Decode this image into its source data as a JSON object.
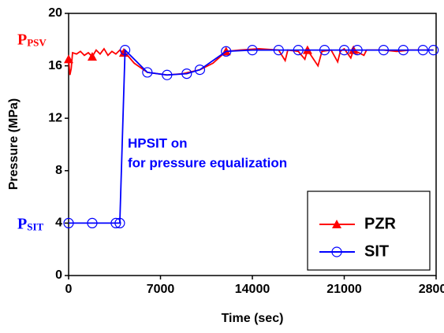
{
  "chart_data": {
    "type": "line",
    "x_label": "Time (sec)",
    "y_label": "Pressure (MPa)",
    "xlim": [
      0,
      28000
    ],
    "xticks": [
      0,
      7000,
      14000,
      21000,
      28000
    ],
    "ylim": [
      0,
      20
    ],
    "yticks": [
      0,
      4,
      8,
      12,
      16,
      20
    ],
    "legend_position": "lower right",
    "series": [
      {
        "name": "PZR",
        "color": "#ff0000",
        "marker": "triangle",
        "marker_every": 8,
        "x": [
          0,
          100,
          200,
          300,
          600,
          900,
          1200,
          1500,
          1800,
          2100,
          2400,
          2700,
          3000,
          3300,
          3600,
          3900,
          4200,
          4400,
          5000,
          6000,
          7500,
          8700,
          10000,
          11000,
          12000,
          13000,
          14500,
          16000,
          16500,
          16700,
          17500,
          18000,
          18200,
          19000,
          19300,
          20000,
          20500,
          20700,
          21000,
          21500,
          21700,
          22500,
          22700,
          24000,
          25000,
          26000,
          27000,
          27800
        ],
        "values": [
          16.5,
          15.3,
          15.8,
          17.0,
          16.9,
          17.1,
          16.8,
          17.0,
          16.7,
          17.2,
          16.9,
          17.3,
          16.8,
          17.1,
          16.9,
          17.2,
          17.0,
          16.9,
          16.2,
          15.5,
          15.3,
          15.4,
          15.7,
          16.2,
          17.1,
          17.2,
          17.3,
          17.2,
          16.4,
          17.2,
          17.1,
          16.5,
          17.2,
          16.0,
          17.1,
          17.2,
          16.3,
          17.1,
          17.3,
          16.6,
          17.2,
          16.8,
          17.2,
          17.2,
          17.1,
          17.2,
          17.2,
          17.2
        ]
      },
      {
        "name": "SIT",
        "color": "#0000ff",
        "marker": "circle",
        "marker_every": 1,
        "x": [
          0,
          1800,
          3600,
          3900,
          4300,
          6000,
          7500,
          9000,
          10000,
          12000,
          14000,
          16000,
          17500,
          19500,
          21000,
          22000,
          24000,
          25500,
          27000,
          27800
        ],
        "values": [
          4,
          4,
          4,
          4,
          17.2,
          15.5,
          15.3,
          15.4,
          15.7,
          17.1,
          17.2,
          17.2,
          17.2,
          17.2,
          17.2,
          17.2,
          17.2,
          17.2,
          17.2,
          17.2
        ]
      }
    ],
    "annotations": [
      {
        "text": "P",
        "sub": "PSV",
        "color": "#ff0000",
        "y": 17.2
      },
      {
        "text": "P",
        "sub": "SIT",
        "color": "#0000ff",
        "y": 4
      },
      {
        "text": "HPSIT on",
        "color": "#0000ff"
      },
      {
        "text": "for pressure equalization",
        "color": "#0000ff"
      }
    ]
  }
}
